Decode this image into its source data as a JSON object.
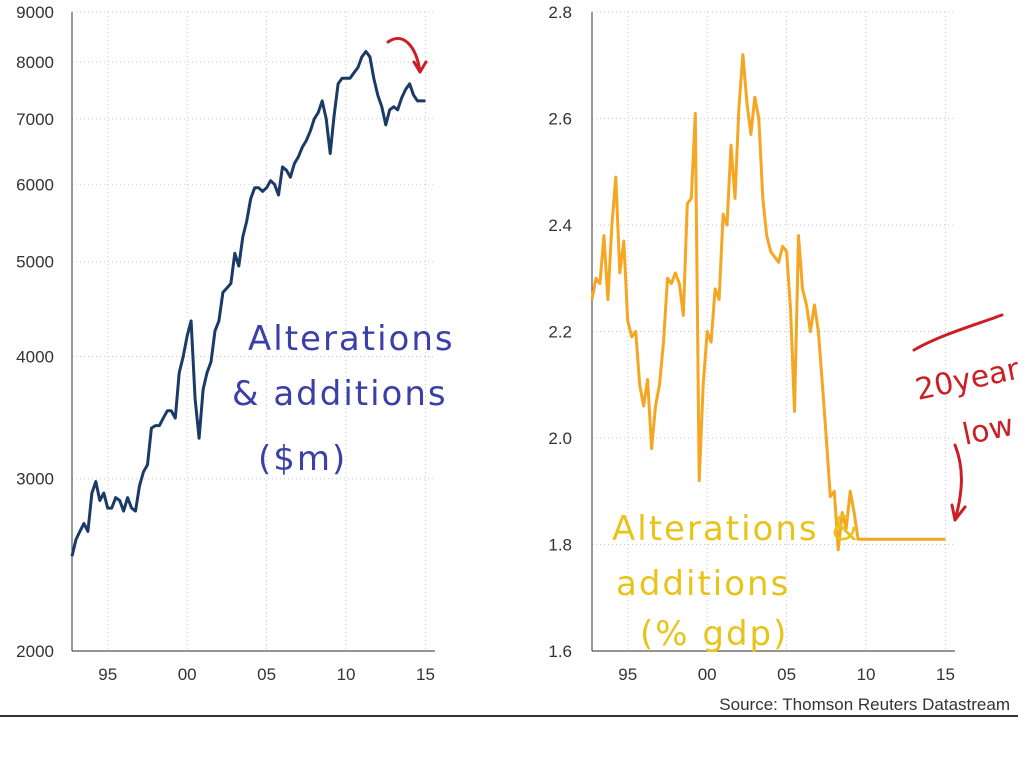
{
  "source_text": "Source: Thomson Reuters Datastream",
  "chart_data": [
    {
      "type": "line",
      "series": [
        {
          "color": "#1b3a66",
          "x": [
            1992.75,
            1993.0,
            1993.25,
            1993.5,
            1993.75,
            1994.0,
            1994.25,
            1994.5,
            1994.75,
            1995.0,
            1995.25,
            1995.5,
            1995.75,
            1996.0,
            1996.25,
            1996.5,
            1996.75,
            1997.0,
            1997.25,
            1997.5,
            1997.75,
            1998.0,
            1998.25,
            1998.5,
            1998.75,
            1999.0,
            1999.25,
            1999.5,
            1999.75,
            2000.0,
            2000.25,
            2000.5,
            2000.75,
            2001.0,
            2001.25,
            2001.5,
            2001.75,
            2002.0,
            2002.25,
            2002.5,
            2002.75,
            2003.0,
            2003.25,
            2003.5,
            2003.75,
            2004.0,
            2004.25,
            2004.5,
            2004.75,
            2005.0,
            2005.25,
            2005.5,
            2005.75,
            2006.0,
            2006.25,
            2006.5,
            2006.75,
            2007.0,
            2007.25,
            2007.5,
            2007.75,
            2008.0,
            2008.25,
            2008.5,
            2008.75,
            2009.0,
            2009.25,
            2009.5,
            2009.75,
            2010.0,
            2010.25,
            2010.5,
            2010.75,
            2011.0,
            2011.25,
            2011.5,
            2011.75,
            2012.0,
            2012.25,
            2012.5,
            2012.75,
            2013.0,
            2013.25,
            2013.5,
            2013.75,
            2014.0,
            2014.25,
            2014.5,
            2014.75,
            2015.0
          ],
          "values": [
            2500,
            2600,
            2650,
            2700,
            2650,
            2900,
            2980,
            2850,
            2900,
            2800,
            2800,
            2870,
            2850,
            2780,
            2870,
            2800,
            2780,
            2950,
            3050,
            3100,
            3380,
            3400,
            3400,
            3460,
            3520,
            3520,
            3460,
            3850,
            4000,
            4200,
            4350,
            3620,
            3300,
            3700,
            3850,
            3950,
            4250,
            4350,
            4650,
            4700,
            4750,
            5100,
            4950,
            5300,
            5500,
            5800,
            5950,
            5950,
            5900,
            5950,
            6050,
            6000,
            5850,
            6250,
            6200,
            6100,
            6300,
            6400,
            6550,
            6650,
            6800,
            7000,
            7100,
            7300,
            7000,
            6450,
            7050,
            7600,
            7700,
            7700,
            7700,
            7800,
            7900,
            8100,
            8200,
            8100,
            7700,
            7400,
            7200,
            6900,
            7150,
            7200,
            7150,
            7350,
            7500,
            7600,
            7400,
            7300,
            7300,
            7300
          ]
        }
      ],
      "ylim": [
        2000,
        9000
      ],
      "yscale": "log",
      "yticks": [
        "2000",
        "3000",
        "4000",
        "5000",
        "6000",
        "7000",
        "8000",
        "9000"
      ],
      "xticks": [
        "95",
        "00",
        "05",
        "10",
        "15"
      ],
      "grid": true,
      "annotation": "Alterations & additions ($m)"
    },
    {
      "type": "line",
      "series": [
        {
          "color": "#f5a623",
          "x": [
            1992.75,
            1993.0,
            1993.25,
            1993.5,
            1993.75,
            1994.0,
            1994.25,
            1994.5,
            1994.75,
            1995.0,
            1995.25,
            1995.5,
            1995.75,
            1996.0,
            1996.25,
            1996.5,
            1996.75,
            1997.0,
            1997.25,
            1997.5,
            1997.75,
            1998.0,
            1998.25,
            1998.5,
            1998.75,
            1999.0,
            1999.25,
            1999.5,
            1999.75,
            2000.0,
            2000.25,
            2000.5,
            2000.75,
            2001.0,
            2001.25,
            2001.5,
            2001.75,
            2002.0,
            2002.25,
            2002.5,
            2002.75,
            2003.0,
            2003.25,
            2003.5,
            2003.75,
            2004.0,
            2004.25,
            2004.5,
            2004.75,
            2005.0,
            2005.25,
            2005.5,
            2005.75,
            2006.0,
            2006.25,
            2006.5,
            2006.75,
            2007.0,
            2007.25,
            2007.5,
            2007.75,
            2008.0,
            2008.25,
            2008.5,
            2008.75,
            2009.0,
            2009.25,
            2009.5,
            2009.75,
            2010.0,
            2010.25,
            2010.5,
            2010.75,
            2011.0,
            2011.25,
            2011.5,
            2011.75,
            2012.0,
            2012.25,
            2012.5,
            2012.75,
            2013.0,
            2013.25,
            2013.5,
            2013.75,
            2014.0,
            2014.25,
            2014.5,
            2014.75,
            2015.0
          ],
          "values": [
            2.26,
            2.3,
            2.29,
            2.38,
            2.26,
            2.4,
            2.49,
            2.31,
            2.37,
            2.22,
            2.19,
            2.2,
            2.1,
            2.06,
            2.11,
            1.98,
            2.06,
            2.1,
            2.18,
            2.3,
            2.29,
            2.31,
            2.29,
            2.23,
            2.44,
            2.45,
            2.61,
            1.92,
            2.1,
            2.2,
            2.18,
            2.28,
            2.26,
            2.42,
            2.4,
            2.55,
            2.45,
            2.62,
            2.72,
            2.63,
            2.57,
            2.64,
            2.6,
            2.45,
            2.38,
            2.35,
            2.34,
            2.33,
            2.36,
            2.35,
            2.24,
            2.05,
            2.38,
            2.28,
            2.25,
            2.2,
            2.25,
            2.2,
            2.1,
            2.0,
            1.89,
            1.9,
            1.79,
            1.86,
            1.83,
            1.9,
            1.86,
            1.81,
            1.81,
            1.81,
            1.81,
            1.81,
            1.81,
            1.81,
            1.81,
            1.81,
            1.81,
            1.81,
            1.81,
            1.81,
            1.81,
            1.81,
            1.81,
            1.81,
            1.81,
            1.81,
            1.81,
            1.81,
            1.81,
            1.81
          ],
          "x_end": 2015.0
        }
      ],
      "ylim": [
        1.6,
        2.8
      ],
      "yticks": [
        "1.6",
        "1.8",
        "2.0",
        "2.2",
        "2.4",
        "2.6",
        "2.8"
      ],
      "xticks": [
        "95",
        "00",
        "05",
        "10",
        "15"
      ],
      "grid": true,
      "annotation_line1": "Alterations &",
      "annotation_line2": "additions",
      "annotation_line3": "(% gdp)",
      "side_note_line1": "20year",
      "side_note_line2": "low"
    }
  ]
}
